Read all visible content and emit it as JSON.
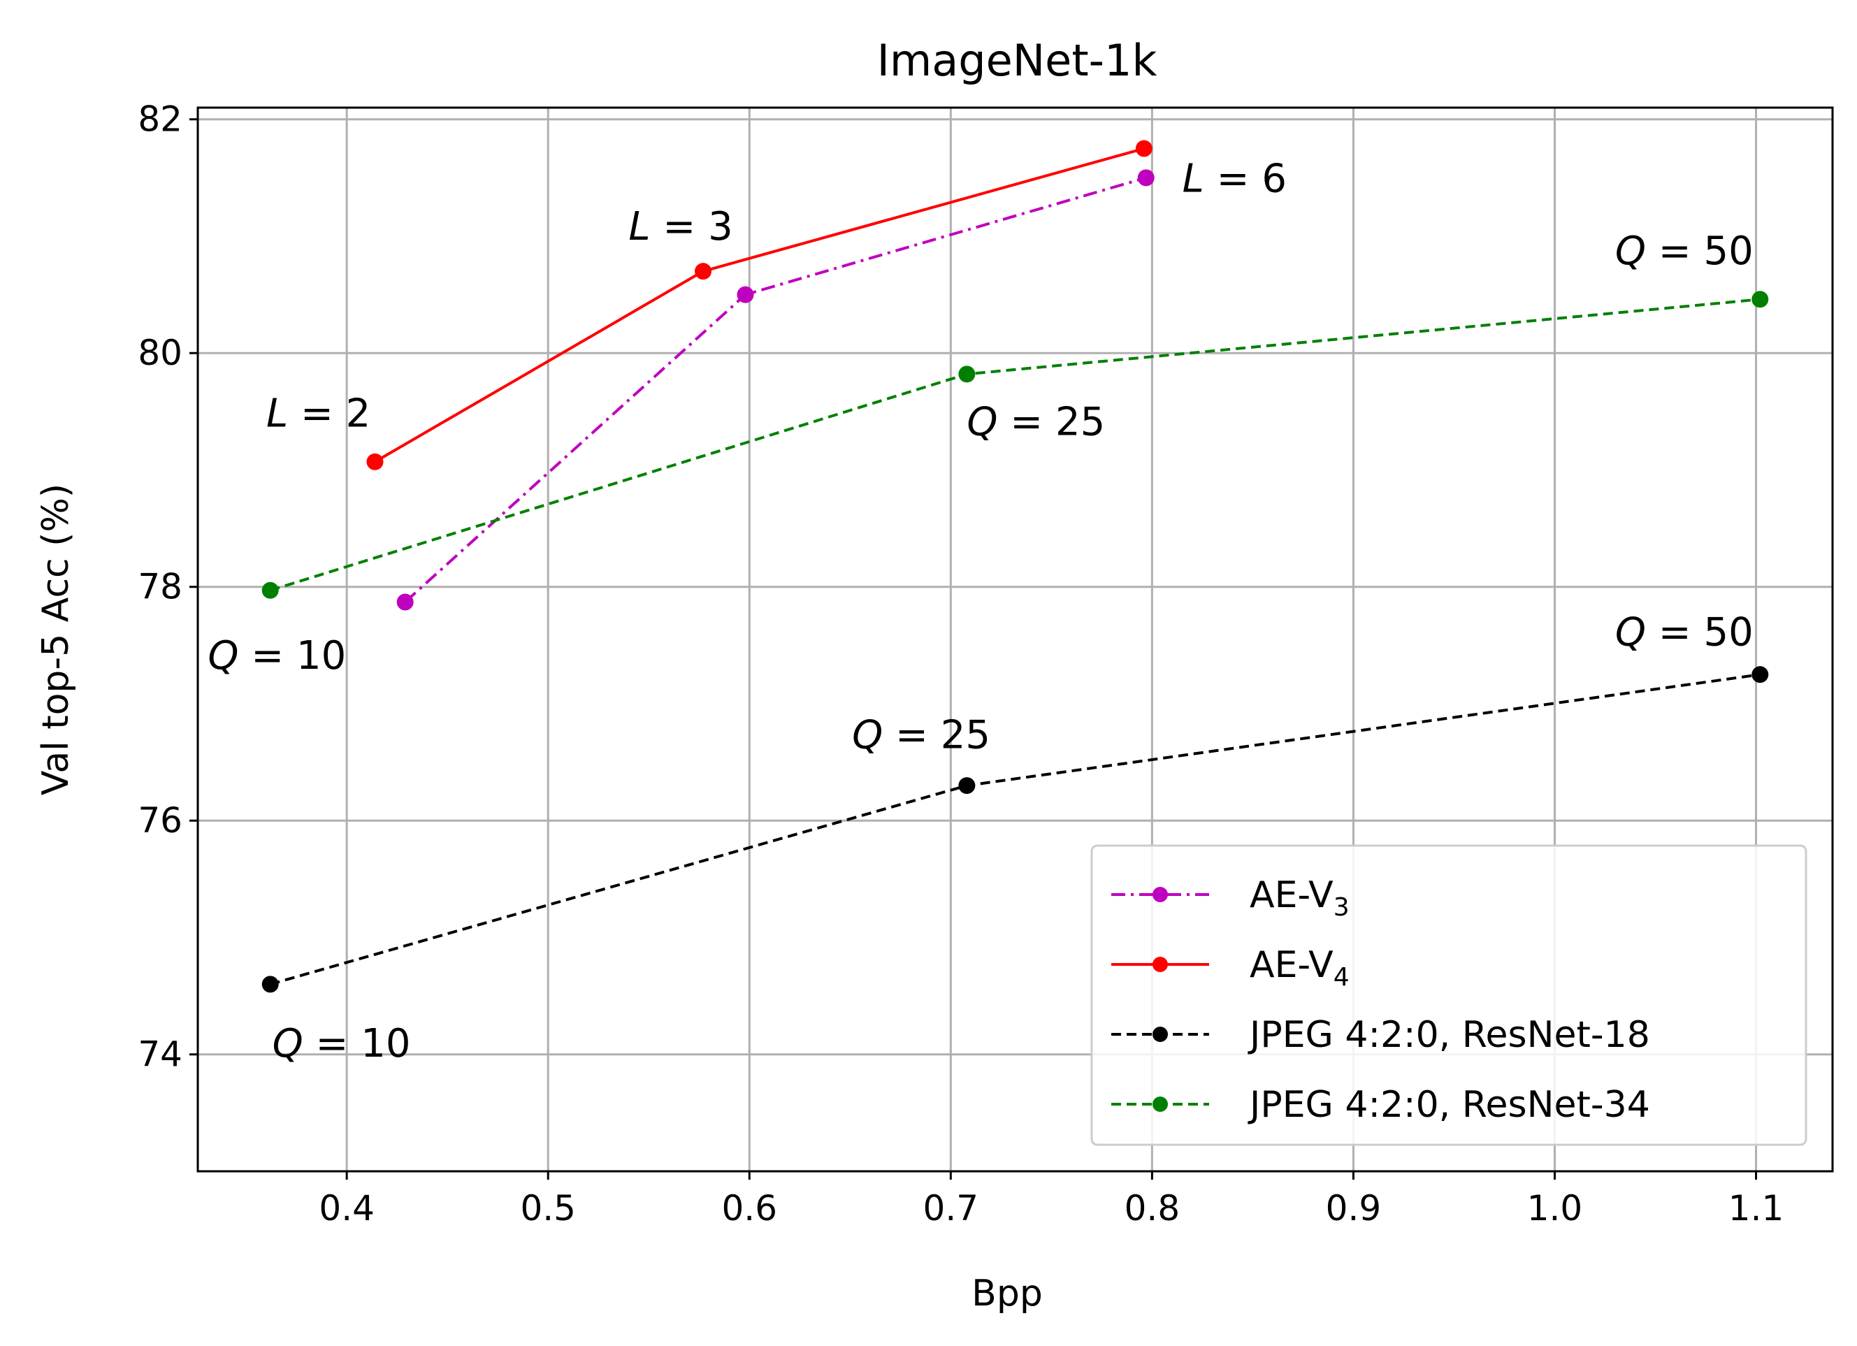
{
  "chart_data": {
    "type": "line",
    "title": "ImageNet-1k",
    "xlabel": "Bpp",
    "ylabel": "Val top-5 Acc (%)",
    "xlim": [
      0.326,
      1.138
    ],
    "ylim": [
      73.0,
      82.1
    ],
    "xticks": [
      0.4,
      0.5,
      0.6,
      0.7,
      0.8,
      0.9,
      1.0,
      1.1
    ],
    "xtick_labels": [
      "0.4",
      "0.5",
      "0.6",
      "0.7",
      "0.8",
      "0.9",
      "1.0",
      "1.1"
    ],
    "yticks": [
      74,
      76,
      78,
      80,
      82
    ],
    "ytick_labels": [
      "74",
      "76",
      "78",
      "80",
      "82"
    ],
    "grid": true,
    "legend_position": "lower-right",
    "series": [
      {
        "name": "AE-V",
        "name_sub": "3",
        "color": "#bf00bf",
        "linestyle": "dashdot",
        "x": [
          0.429,
          0.598,
          0.797
        ],
        "y": [
          77.87,
          80.5,
          81.5
        ]
      },
      {
        "name": "AE-V",
        "name_sub": "4",
        "color": "#ff0000",
        "linestyle": "solid",
        "x": [
          0.414,
          0.577,
          0.796
        ],
        "y": [
          79.07,
          80.7,
          81.75
        ]
      },
      {
        "name": "JPEG 4:2:0, ResNet-18",
        "color": "#000000",
        "linestyle": "dashed",
        "x": [
          0.362,
          0.708,
          1.102
        ],
        "y": [
          74.6,
          76.3,
          77.25
        ]
      },
      {
        "name": "JPEG 4:2:0, ResNet-34",
        "color": "#008000",
        "linestyle": "dashed",
        "x": [
          0.362,
          0.708,
          1.102
        ],
        "y": [
          77.97,
          79.82,
          80.46
        ]
      }
    ],
    "annotations": [
      {
        "lhs": "L",
        "rhs": "2",
        "x": 0.36,
        "y": 79.37,
        "anchor": "start"
      },
      {
        "lhs": "L",
        "rhs": "3",
        "x": 0.54,
        "y": 80.97,
        "anchor": "start"
      },
      {
        "lhs": "L",
        "rhs": "6",
        "x": 0.815,
        "y": 81.38,
        "anchor": "start"
      },
      {
        "lhs": "Q",
        "rhs": "50",
        "x": 1.03,
        "y": 80.76,
        "anchor": "start"
      },
      {
        "lhs": "Q",
        "rhs": "25",
        "x": 0.708,
        "y": 79.3,
        "anchor": "start"
      },
      {
        "lhs": "Q",
        "rhs": "10",
        "x": 0.331,
        "y": 77.3,
        "anchor": "start"
      },
      {
        "lhs": "Q",
        "rhs": "50",
        "x": 1.03,
        "y": 77.5,
        "anchor": "start"
      },
      {
        "lhs": "Q",
        "rhs": "25",
        "x": 0.651,
        "y": 76.62,
        "anchor": "start"
      },
      {
        "lhs": "Q",
        "rhs": "10",
        "x": 0.363,
        "y": 73.98,
        "anchor": "start"
      }
    ]
  }
}
